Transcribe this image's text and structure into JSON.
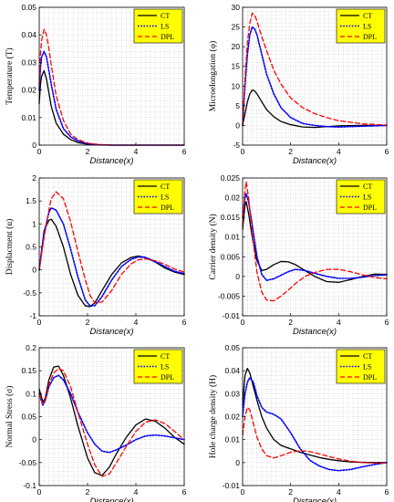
{
  "colors": {
    "CT": "#000000",
    "LS": "#0000ff",
    "DPL": "#ff0000",
    "legend_bg": "#ffff00",
    "grid": "#b8b8b8"
  },
  "legend": [
    "CT",
    "LS",
    "DPL"
  ],
  "chart_data": [
    {
      "type": "line",
      "ylabel": "Temperature (T)",
      "xlabel": "Distance(x)",
      "xlim": [
        0,
        6
      ],
      "ylim": [
        0,
        0.05
      ],
      "xticks": [
        "0",
        "2",
        "4",
        "6"
      ],
      "yticks": [
        "0",
        "0.01",
        "0.02",
        "0.03",
        "0.04",
        "0.05"
      ],
      "legend_position": "top-right",
      "grid": true,
      "x": [
        0,
        0.05,
        0.1,
        0.2,
        0.3,
        0.4,
        0.5,
        0.7,
        1,
        1.3,
        1.6,
        2,
        2.5,
        3,
        4,
        5,
        6
      ],
      "series": [
        {
          "name": "CT",
          "values": [
            0.015,
            0.022,
            0.025,
            0.027,
            0.024,
            0.019,
            0.014,
            0.008,
            0.004,
            0.002,
            0.0009,
            0.0003,
            0.0001,
            0,
            0,
            0,
            0
          ]
        },
        {
          "name": "LS",
          "values": [
            0.02,
            0.028,
            0.032,
            0.034,
            0.032,
            0.027,
            0.022,
            0.013,
            0.006,
            0.003,
            0.0015,
            0.0005,
            0.0001,
            0,
            0,
            0,
            0
          ]
        },
        {
          "name": "DPL",
          "values": [
            0.022,
            0.033,
            0.038,
            0.042,
            0.04,
            0.035,
            0.029,
            0.018,
            0.009,
            0.004,
            0.002,
            0.0007,
            0.0002,
            0,
            0,
            0,
            0
          ]
        }
      ]
    },
    {
      "type": "line",
      "ylabel": "Microelongation (φ)",
      "xlabel": "Distance(x)",
      "xlim": [
        0,
        6
      ],
      "ylim": [
        -5,
        30
      ],
      "xticks": [
        "0",
        "2",
        "4",
        "6"
      ],
      "yticks": [
        "-5",
        "0",
        "5",
        "10",
        "15",
        "20",
        "25",
        "30"
      ],
      "legend_position": "top-right",
      "grid": true,
      "x": [
        0,
        0.1,
        0.2,
        0.3,
        0.4,
        0.5,
        0.6,
        0.8,
        1,
        1.3,
        1.6,
        2,
        2.5,
        3,
        3.5,
        4,
        5,
        6
      ],
      "series": [
        {
          "name": "CT",
          "values": [
            0,
            3,
            6,
            8,
            9,
            8.8,
            8,
            6,
            4,
            2.2,
            1,
            0.2,
            -0.4,
            -0.5,
            -0.3,
            -0.1,
            0,
            0
          ]
        },
        {
          "name": "LS",
          "values": [
            0,
            10,
            18,
            23,
            25,
            24.5,
            23,
            18,
            13,
            8,
            4.5,
            2,
            0.5,
            0,
            -0.3,
            -0.4,
            -0.2,
            0
          ]
        },
        {
          "name": "DPL",
          "values": [
            0,
            12,
            21,
            26,
            28.5,
            28,
            26.5,
            22.5,
            19,
            14,
            10.5,
            7,
            4.5,
            3,
            2,
            1.2,
            0.4,
            0.1
          ]
        }
      ]
    },
    {
      "type": "line",
      "ylabel": "Displacment (u)",
      "xlabel": "Distance(x)",
      "xlim": [
        0,
        6
      ],
      "ylim": [
        -1,
        2
      ],
      "xticks": [
        "0",
        "2",
        "4",
        "6"
      ],
      "yticks": [
        "-1",
        "-0.5",
        "0",
        "0.5",
        "1",
        "1.5",
        "2"
      ],
      "legend_position": "top-right",
      "grid": true,
      "x": [
        0,
        0.2,
        0.4,
        0.5,
        0.7,
        1,
        1.3,
        1.6,
        1.9,
        2.1,
        2.3,
        2.6,
        3,
        3.4,
        3.8,
        4.1,
        4.4,
        4.8,
        5.2,
        5.6,
        6
      ],
      "series": [
        {
          "name": "CT",
          "values": [
            0,
            0.85,
            1.08,
            1.1,
            0.95,
            0.5,
            -0.1,
            -0.55,
            -0.78,
            -0.8,
            -0.72,
            -0.45,
            -0.1,
            0.15,
            0.27,
            0.3,
            0.27,
            0.17,
            0.04,
            -0.05,
            -0.1
          ]
        },
        {
          "name": "LS",
          "values": [
            0,
            0.8,
            1.25,
            1.35,
            1.3,
            1.0,
            0.45,
            -0.15,
            -0.65,
            -0.78,
            -0.78,
            -0.58,
            -0.22,
            0.07,
            0.23,
            0.28,
            0.27,
            0.18,
            0.07,
            -0.03,
            -0.08
          ]
        },
        {
          "name": "DPL",
          "values": [
            0,
            0.7,
            1.3,
            1.55,
            1.7,
            1.55,
            1.05,
            0.4,
            -0.2,
            -0.55,
            -0.72,
            -0.7,
            -0.45,
            -0.1,
            0.13,
            0.22,
            0.24,
            0.2,
            0.12,
            0.02,
            -0.05
          ]
        }
      ]
    },
    {
      "type": "line",
      "ylabel": "Carrier density (N)",
      "xlabel": "Distance(x)",
      "xlim": [
        0,
        6
      ],
      "ylim": [
        -0.01,
        0.025
      ],
      "xticks": [
        "0",
        "2",
        "4",
        "6"
      ],
      "yticks": [
        "-0.01",
        "-0.005",
        "0",
        "0.005",
        "0.01",
        "0.015",
        "0.02",
        "0.025"
      ],
      "legend_position": "top-right",
      "grid": true,
      "x": [
        0,
        0.1,
        0.15,
        0.25,
        0.4,
        0.6,
        0.8,
        1,
        1.3,
        1.6,
        1.9,
        2.2,
        2.6,
        3,
        3.5,
        4,
        4.5,
        5,
        5.5,
        6
      ],
      "series": [
        {
          "name": "CT",
          "values": [
            0.012,
            0.018,
            0.019,
            0.016,
            0.01,
            0.004,
            0.0015,
            0.0018,
            0.003,
            0.0038,
            0.0037,
            0.003,
            0.0015,
            0,
            -0.0013,
            -0.0015,
            -0.0008,
            0,
            0.0006,
            0.0005
          ]
        },
        {
          "name": "LS",
          "values": [
            0.015,
            0.02,
            0.021,
            0.019,
            0.013,
            0.005,
            0.0005,
            -0.001,
            -0.0006,
            0.0003,
            0.0012,
            0.0018,
            0.0015,
            0.0008,
            0,
            -0.0005,
            -0.0005,
            -0.0002,
            0.0002,
            0.0004
          ]
        },
        {
          "name": "DPL",
          "values": [
            0.013,
            0.022,
            0.024,
            0.02,
            0.011,
            0.001,
            -0.004,
            -0.006,
            -0.0062,
            -0.005,
            -0.0035,
            -0.0018,
            0,
            0.001,
            0.0018,
            0.0018,
            0.0012,
            0.0004,
            -0.0003,
            -0.0006
          ]
        }
      ]
    },
    {
      "type": "line",
      "ylabel": "Normal Stress (σ)",
      "xlabel": "Distance(x)",
      "xlim": [
        0,
        6
      ],
      "ylim": [
        -0.1,
        0.2
      ],
      "xticks": [
        "0",
        "2",
        "4",
        "6"
      ],
      "yticks": [
        "-0.1",
        "-0.05",
        "0",
        "0.05",
        "0.1",
        "0.15",
        "0.2"
      ],
      "legend_position": "top-right",
      "grid": true,
      "x": [
        0,
        0.15,
        0.25,
        0.4,
        0.6,
        0.8,
        1,
        1.3,
        1.6,
        2,
        2.3,
        2.6,
        2.9,
        3.2,
        3.6,
        4,
        4.4,
        4.8,
        5.2,
        5.6,
        6
      ],
      "series": [
        {
          "name": "CT",
          "values": [
            0.11,
            0.082,
            0.09,
            0.13,
            0.158,
            0.16,
            0.14,
            0.09,
            0.03,
            -0.04,
            -0.072,
            -0.078,
            -0.06,
            -0.03,
            0.005,
            0.032,
            0.045,
            0.04,
            0.025,
            0.005,
            -0.01
          ]
        },
        {
          "name": "LS",
          "values": [
            0.1,
            0.075,
            0.085,
            0.115,
            0.135,
            0.14,
            0.13,
            0.1,
            0.06,
            0.015,
            -0.01,
            -0.025,
            -0.028,
            -0.022,
            -0.012,
            0,
            0.008,
            0.01,
            0.008,
            0.004,
            0
          ]
        },
        {
          "name": "DPL",
          "values": [
            0.1,
            0.078,
            0.085,
            0.12,
            0.145,
            0.155,
            0.15,
            0.115,
            0.06,
            -0.01,
            -0.055,
            -0.08,
            -0.075,
            -0.05,
            -0.015,
            0.018,
            0.038,
            0.043,
            0.035,
            0.018,
            0
          ]
        }
      ]
    },
    {
      "type": "line",
      "ylabel": "Hole charge density (H)",
      "xlabel": "Distance(x)",
      "xlim": [
        0,
        6
      ],
      "ylim": [
        -0.01,
        0.05
      ],
      "xticks": [
        "0",
        "2",
        "4",
        "6"
      ],
      "yticks": [
        "-0.01",
        "0",
        "0.01",
        "0.02",
        "0.03",
        "0.04",
        "0.05"
      ],
      "legend_position": "top-right",
      "grid": true,
      "x": [
        0,
        0.1,
        0.2,
        0.3,
        0.45,
        0.6,
        0.8,
        1,
        1.3,
        1.6,
        2,
        2.4,
        2.8,
        3.2,
        3.6,
        4,
        4.5,
        5,
        5.5,
        6
      ],
      "series": [
        {
          "name": "CT",
          "values": [
            0.025,
            0.038,
            0.041,
            0.039,
            0.033,
            0.027,
            0.02,
            0.015,
            0.01,
            0.0075,
            0.006,
            0.0045,
            0.0033,
            0.0022,
            0.0014,
            0.0008,
            0.0003,
            0.0001,
            0,
            0
          ]
        },
        {
          "name": "LS",
          "values": [
            0.02,
            0.03,
            0.035,
            0.037,
            0.035,
            0.029,
            0.024,
            0.022,
            0.021,
            0.019,
            0.013,
            0.006,
            0.001,
            -0.0015,
            -0.003,
            -0.0035,
            -0.003,
            -0.0018,
            -0.0008,
            0
          ]
        },
        {
          "name": "DPL",
          "values": [
            0.012,
            0.02,
            0.024,
            0.023,
            0.017,
            0.011,
            0.006,
            0.003,
            0.002,
            0.003,
            0.0045,
            0.0052,
            0.0048,
            0.0038,
            0.0026,
            0.0016,
            0.0006,
            0,
            -0.0002,
            -0.0002
          ]
        }
      ]
    }
  ]
}
